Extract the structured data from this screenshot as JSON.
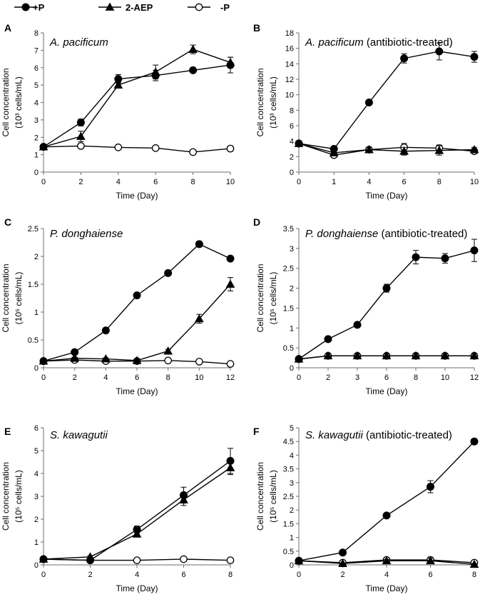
{
  "legend": [
    {
      "label": "+P",
      "marker": "filled-circle"
    },
    {
      "label": "2-AEP",
      "marker": "filled-triangle"
    },
    {
      "label": "-P",
      "marker": "open-circle"
    }
  ],
  "colors": {
    "ink": "#000000",
    "background": "#ffffff"
  },
  "chart_data": [
    {
      "panel": "A",
      "type": "line",
      "title": "A. pacificum",
      "title_suffix": "",
      "xlabel": "Time (Day)",
      "ylabel": "Cell concentration",
      "ylabel_line2": "(10³ cells/mL)",
      "x_ticks": [
        0,
        2,
        4,
        6,
        8,
        10
      ],
      "x_scale": "linear",
      "ylim": [
        0,
        8
      ],
      "y_ticks": [
        0,
        1,
        2,
        3,
        4,
        5,
        6,
        7,
        8
      ],
      "series": [
        {
          "name": "+P",
          "x": [
            0,
            2,
            4,
            6,
            8,
            10
          ],
          "y": [
            1.45,
            2.85,
            5.35,
            5.55,
            5.85,
            6.15
          ],
          "err": [
            0.1,
            0.2,
            0.25,
            0.3,
            0.1,
            0.45
          ]
        },
        {
          "name": "2-AEP",
          "x": [
            0,
            2,
            4,
            6,
            8,
            10
          ],
          "y": [
            1.45,
            2.05,
            5.0,
            5.75,
            7.05,
            6.3
          ],
          "err": [
            0.1,
            0.3,
            0.15,
            0.4,
            0.25,
            0.3
          ]
        },
        {
          "name": "-P",
          "x": [
            0,
            2,
            4,
            6,
            8,
            10
          ],
          "y": [
            1.45,
            1.5,
            1.42,
            1.38,
            1.15,
            1.35
          ],
          "err": [
            0.05,
            0.08,
            0.05,
            0.1,
            0.05,
            0.15
          ]
        }
      ]
    },
    {
      "panel": "B",
      "type": "line",
      "title": "A. pacificum",
      "title_suffix": " (antibiotic-treated)",
      "xlabel": "Time (Day)",
      "ylabel": "Cell concentration",
      "ylabel_line2": "(10³ cells/mL)",
      "x_ticks": [
        0,
        1,
        4,
        6,
        8,
        10
      ],
      "x_scale": "categorical",
      "ylim": [
        0,
        18
      ],
      "y_ticks": [
        0,
        2,
        4,
        6,
        8,
        10,
        12,
        14,
        16,
        18
      ],
      "series": [
        {
          "name": "+P",
          "x": [
            0,
            1,
            4,
            6,
            8,
            10
          ],
          "y": [
            3.7,
            3.0,
            9.0,
            14.7,
            15.6,
            14.9
          ],
          "err": [
            0.2,
            0.2,
            0.2,
            0.6,
            1.1,
            0.7
          ]
        },
        {
          "name": "2-AEP",
          "x": [
            0,
            1,
            4,
            6,
            8,
            10
          ],
          "y": [
            3.7,
            2.5,
            2.9,
            2.7,
            2.8,
            2.9
          ],
          "err": [
            0.2,
            0.3,
            0.3,
            0.5,
            0.6,
            0.3
          ]
        },
        {
          "name": "-P",
          "x": [
            0,
            1,
            4,
            6,
            8,
            10
          ],
          "y": [
            3.7,
            2.2,
            2.9,
            3.2,
            3.1,
            2.7
          ],
          "err": [
            0.2,
            0.3,
            0.3,
            0.5,
            0.4,
            0.3
          ]
        }
      ]
    },
    {
      "panel": "C",
      "type": "line",
      "title": "P. donghaiense",
      "title_suffix": "",
      "xlabel": "Time (Day)",
      "ylabel": "Cell concentration",
      "ylabel_line2": "(10⁵ cells/mL)",
      "x_ticks": [
        0,
        2,
        4,
        6,
        8,
        10,
        12
      ],
      "x_scale": "linear",
      "ylim": [
        0,
        2.5
      ],
      "y_ticks": [
        0,
        0.5,
        1,
        1.5,
        2,
        2.5
      ],
      "series": [
        {
          "name": "+P",
          "x": [
            0,
            2,
            4,
            6,
            8,
            10,
            12
          ],
          "y": [
            0.12,
            0.28,
            0.67,
            1.3,
            1.7,
            2.22,
            1.96
          ],
          "err": [
            0.01,
            0.02,
            0.02,
            0.03,
            0.03,
            0.05,
            0.03
          ]
        },
        {
          "name": "2-AEP",
          "x": [
            0,
            2,
            4,
            6,
            8,
            10,
            12
          ],
          "y": [
            0.12,
            0.17,
            0.16,
            0.13,
            0.3,
            0.88,
            1.5
          ],
          "err": [
            0.01,
            0.02,
            0.02,
            0.02,
            0.03,
            0.08,
            0.12
          ]
        },
        {
          "name": "-P",
          "x": [
            0,
            2,
            4,
            6,
            8,
            10,
            12
          ],
          "y": [
            0.12,
            0.14,
            0.12,
            0.12,
            0.13,
            0.11,
            0.07
          ],
          "err": [
            0.01,
            0.01,
            0.01,
            0.01,
            0.01,
            0.02,
            0.01
          ]
        }
      ]
    },
    {
      "panel": "D",
      "type": "line",
      "title": "P. donghaiense",
      "title_suffix": " (antibiotic-treated)",
      "xlabel": "Time (Day)",
      "ylabel": "Cell concentration",
      "ylabel_line2": "(10⁵ cells/mL)",
      "x_ticks": [
        0,
        2,
        3,
        6,
        8,
        10,
        12
      ],
      "x_scale": "categorical",
      "ylim": [
        0,
        3.5
      ],
      "y_ticks": [
        0,
        0.5,
        1,
        1.5,
        2,
        2.5,
        3,
        3.5
      ],
      "series": [
        {
          "name": "+P",
          "x": [
            0,
            2,
            3,
            6,
            8,
            10,
            12
          ],
          "y": [
            0.22,
            0.72,
            1.08,
            2.0,
            2.78,
            2.75,
            2.95
          ],
          "err": [
            0.02,
            0.03,
            0.03,
            0.1,
            0.17,
            0.12,
            0.28
          ]
        },
        {
          "name": "2-AEP",
          "x": [
            0,
            2,
            3,
            6,
            8,
            10,
            12
          ],
          "y": [
            0.22,
            0.3,
            0.3,
            0.3,
            0.3,
            0.3,
            0.3
          ],
          "err": [
            0.02,
            0.05,
            0.05,
            0.05,
            0.05,
            0.05,
            0.05
          ]
        },
        {
          "name": "-P",
          "x": [
            0,
            2,
            3,
            6,
            8,
            10,
            12
          ],
          "y": [
            0.22,
            0.3,
            0.3,
            0.3,
            0.3,
            0.3,
            0.3
          ],
          "err": [
            0.02,
            0.05,
            0.05,
            0.05,
            0.05,
            0.05,
            0.05
          ]
        }
      ]
    },
    {
      "panel": "E",
      "type": "line",
      "title": "S. kawagutii",
      "title_suffix": "",
      "xlabel": "Time (Day)",
      "ylabel": "Cell concentration",
      "ylabel_line2": "(10⁵ cells/mL)",
      "x_ticks": [
        0,
        2,
        4,
        6,
        8
      ],
      "x_scale": "linear",
      "ylim": [
        0,
        6
      ],
      "y_ticks": [
        0,
        1,
        2,
        3,
        4,
        5,
        6
      ],
      "series": [
        {
          "name": "+P",
          "x": [
            0,
            2,
            4,
            6,
            8
          ],
          "y": [
            0.25,
            0.2,
            1.55,
            3.05,
            4.55
          ],
          "err": [
            0.03,
            0.03,
            0.15,
            0.35,
            0.55
          ]
        },
        {
          "name": "2-AEP",
          "x": [
            0,
            2,
            4,
            6,
            8
          ],
          "y": [
            0.25,
            0.35,
            1.35,
            2.85,
            4.25
          ],
          "err": [
            0.03,
            0.05,
            0.1,
            0.25,
            0.3
          ]
        },
        {
          "name": "-P",
          "x": [
            0,
            2,
            4,
            6,
            8
          ],
          "y": [
            0.25,
            0.2,
            0.2,
            0.25,
            0.2
          ],
          "err": [
            0.03,
            0.03,
            0.03,
            0.03,
            0.03
          ]
        }
      ]
    },
    {
      "panel": "F",
      "type": "line",
      "title": "S. kawagutii",
      "title_suffix": " (antibiotic-treated)",
      "xlabel": "Time (Day)",
      "ylabel": "Cell concentration",
      "ylabel_line2": "(10⁵ cells/mL)",
      "x_ticks": [
        0,
        2,
        4,
        6,
        8
      ],
      "x_scale": "linear",
      "ylim": [
        0,
        5
      ],
      "y_ticks": [
        0,
        0.5,
        1,
        1.5,
        2,
        2.5,
        3,
        3.5,
        4,
        4.5,
        5
      ],
      "series": [
        {
          "name": "+P",
          "x": [
            0,
            2,
            4,
            6,
            8
          ],
          "y": [
            0.15,
            0.45,
            1.8,
            2.85,
            4.5
          ],
          "err": [
            0.02,
            0.03,
            0.05,
            0.22,
            0.05
          ]
        },
        {
          "name": "2-AEP",
          "x": [
            0,
            2,
            4,
            6,
            8
          ],
          "y": [
            0.15,
            0.05,
            0.15,
            0.15,
            0.02
          ],
          "err": [
            0.02,
            0.02,
            0.05,
            0.1,
            0.02
          ]
        },
        {
          "name": "-P",
          "x": [
            0,
            2,
            4,
            6,
            8
          ],
          "y": [
            0.15,
            0.08,
            0.18,
            0.18,
            0.08
          ],
          "err": [
            0.02,
            0.02,
            0.05,
            0.05,
            0.02
          ]
        }
      ]
    }
  ]
}
